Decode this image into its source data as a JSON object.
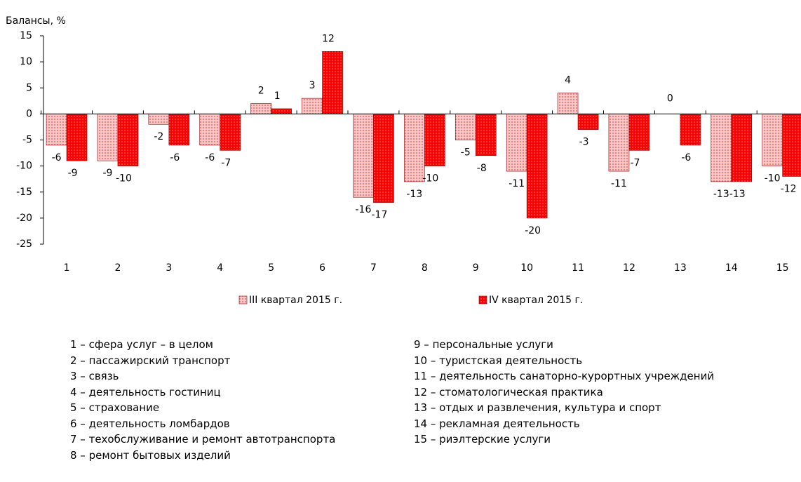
{
  "chart_data": {
    "type": "bar",
    "y_label": "Балансы, %",
    "categories": [
      "1",
      "2",
      "3",
      "4",
      "5",
      "6",
      "7",
      "8",
      "9",
      "10",
      "11",
      "12",
      "13",
      "14",
      "15"
    ],
    "series": [
      {
        "name": "III квартал 2015 г.",
        "color": "#f4a0a0",
        "values": [
          -6,
          -9,
          -2,
          -6,
          2,
          3,
          -16,
          -13,
          -5,
          -11,
          4,
          -11,
          0,
          -13,
          -10
        ]
      },
      {
        "name": "IV квартал 2015 г.",
        "color": "#ff0000",
        "values": [
          -9,
          -10,
          -6,
          -7,
          1,
          12,
          -17,
          -10,
          -8,
          -20,
          -3,
          -7,
          -6,
          -13,
          -12
        ]
      }
    ],
    "ylim": [
      -25,
      15
    ],
    "yticks": [
      -25,
      -20,
      -15,
      -10,
      -5,
      0,
      5,
      10,
      15
    ],
    "notes": [
      "1 – сфера услуг – в целом",
      "2 – пассажирский транспорт",
      "3 – связь",
      "4 – деятельность гостиниц",
      "5 – страхование",
      "6 – деятельность ломбардов",
      "7 – техобслуживание и ремонт автотранспорта",
      "8 – ремонт бытовых изделий",
      "9 – персональные услуги",
      "10 – туристская деятельность",
      "11 – деятельность санаторно-курортных учреждений",
      "12 – стоматологическая практика",
      "13 – отдых и развлечения, культура и спорт",
      "14 – рекламная деятельность",
      "15 – риэлтерские услуги"
    ]
  }
}
